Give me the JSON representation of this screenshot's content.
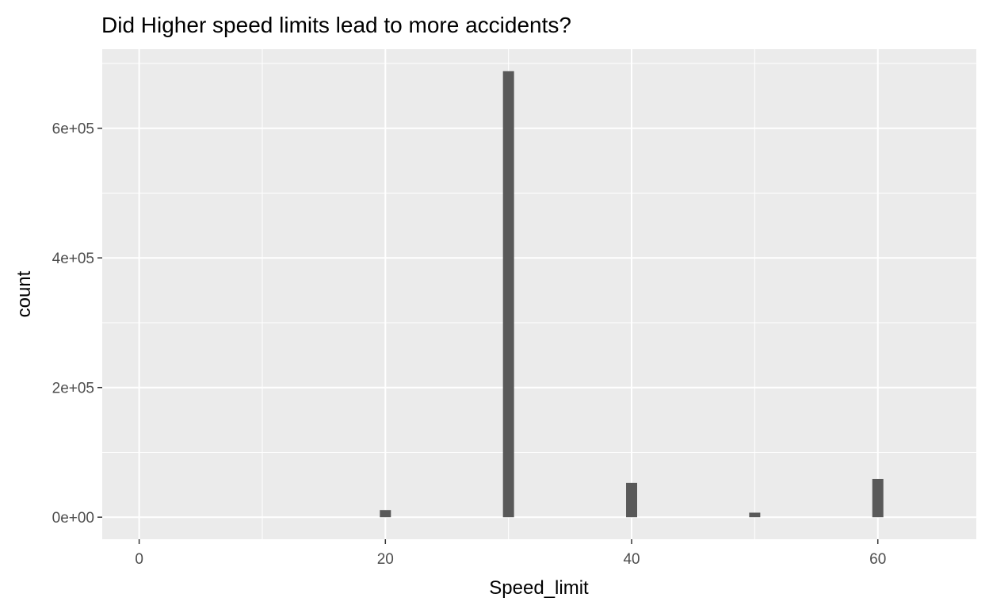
{
  "chart_data": {
    "type": "bar",
    "title": "Did Higher speed limits lead to more accidents?",
    "xlabel": "Speed_limit",
    "ylabel": "count",
    "x": [
      20,
      30,
      40,
      50,
      60
    ],
    "values": [
      11000,
      688000,
      53000,
      7000,
      59000
    ],
    "xlim": [
      -3,
      68
    ],
    "ylim": [
      -34000,
      722000
    ],
    "x_ticks": [
      0,
      20,
      40,
      60
    ],
    "x_tick_labels": [
      "0",
      "20",
      "40",
      "60"
    ],
    "x_minor_ticks": [
      10,
      30,
      50
    ],
    "y_ticks": [
      0,
      200000,
      400000,
      600000
    ],
    "y_tick_labels": [
      "0e+00",
      "2e+05",
      "4e+05",
      "6e+05"
    ],
    "y_minor_ticks": [
      100000,
      300000,
      500000,
      700000
    ],
    "bin_width": 0.9,
    "grid": true,
    "colors": {
      "panel": "#ebebeb",
      "grid": "#ffffff",
      "bar": "#595959",
      "tick_text": "#4d4d4d",
      "text": "#000000"
    }
  }
}
